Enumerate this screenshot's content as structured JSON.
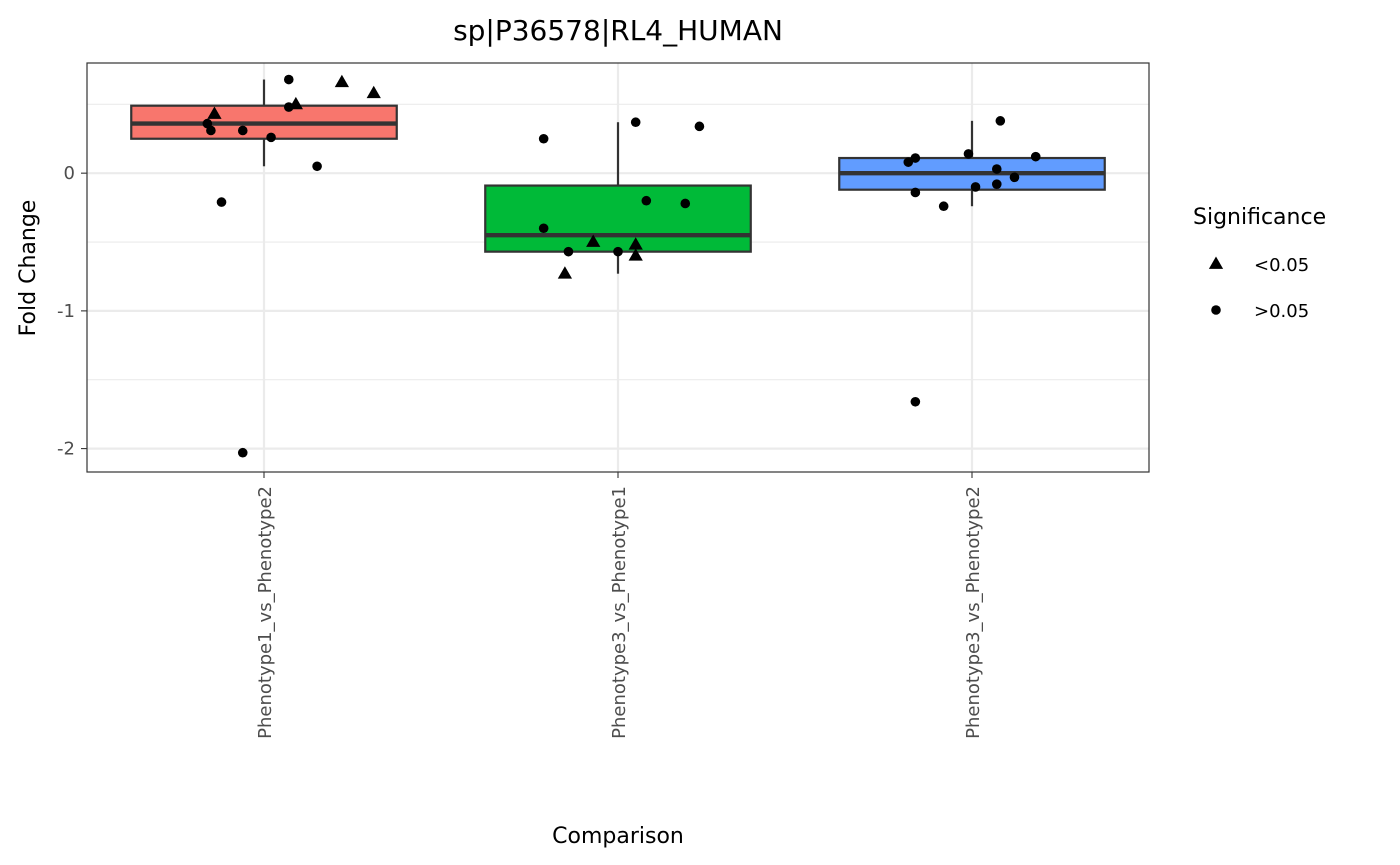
{
  "chart_data": {
    "type": "boxplot",
    "title": "sp|P36578|RL4_HUMAN",
    "xlabel": "Comparison",
    "ylabel": "Fold Change",
    "ylim": [
      -2.17,
      0.8
    ],
    "y_ticks": [
      {
        "value": 0,
        "label": "0"
      },
      {
        "value": -1,
        "label": "-1"
      },
      {
        "value": -2,
        "label": "-2"
      }
    ],
    "categories": [
      "Phenotype1_vs_Phenotype2",
      "Phenotype3_vs_Phenotype1",
      "Phenotype3_vs_Phenotype2"
    ],
    "boxes": [
      {
        "category": "Phenotype1_vs_Phenotype2",
        "fill": "#F8766D",
        "whisker_low": 0.05,
        "q1": 0.25,
        "median": 0.36,
        "q3": 0.49,
        "whisker_high": 0.68
      },
      {
        "category": "Phenotype3_vs_Phenotype1",
        "fill": "#00BA38",
        "whisker_low": -0.73,
        "q1": -0.57,
        "median": -0.45,
        "q3": -0.09,
        "whisker_high": 0.37
      },
      {
        "category": "Phenotype3_vs_Phenotype2",
        "fill": "#619CFF",
        "whisker_low": -0.24,
        "q1": -0.12,
        "median": 0.0,
        "q3": 0.11,
        "whisker_high": 0.38
      }
    ],
    "points": [
      {
        "category": "Phenotype1_vs_Phenotype2",
        "jitter": 0.07,
        "y": 0.68,
        "sig": ">0.05"
      },
      {
        "category": "Phenotype1_vs_Phenotype2",
        "jitter": 0.22,
        "y": 0.66,
        "sig": "<0.05"
      },
      {
        "category": "Phenotype1_vs_Phenotype2",
        "jitter": 0.31,
        "y": 0.58,
        "sig": "<0.05"
      },
      {
        "category": "Phenotype1_vs_Phenotype2",
        "jitter": 0.09,
        "y": 0.5,
        "sig": "<0.05"
      },
      {
        "category": "Phenotype1_vs_Phenotype2",
        "jitter": 0.07,
        "y": 0.48,
        "sig": ">0.05"
      },
      {
        "category": "Phenotype1_vs_Phenotype2",
        "jitter": -0.14,
        "y": 0.43,
        "sig": "<0.05"
      },
      {
        "category": "Phenotype1_vs_Phenotype2",
        "jitter": -0.16,
        "y": 0.36,
        "sig": ">0.05"
      },
      {
        "category": "Phenotype1_vs_Phenotype2",
        "jitter": -0.15,
        "y": 0.31,
        "sig": ">0.05"
      },
      {
        "category": "Phenotype1_vs_Phenotype2",
        "jitter": -0.06,
        "y": 0.31,
        "sig": ">0.05"
      },
      {
        "category": "Phenotype1_vs_Phenotype2",
        "jitter": 0.02,
        "y": 0.26,
        "sig": ">0.05"
      },
      {
        "category": "Phenotype1_vs_Phenotype2",
        "jitter": 0.15,
        "y": 0.05,
        "sig": ">0.05"
      },
      {
        "category": "Phenotype1_vs_Phenotype2",
        "jitter": -0.12,
        "y": -0.21,
        "sig": ">0.05"
      },
      {
        "category": "Phenotype1_vs_Phenotype2",
        "jitter": -0.06,
        "y": -2.03,
        "sig": ">0.05"
      },
      {
        "category": "Phenotype3_vs_Phenotype1",
        "jitter": 0.05,
        "y": 0.37,
        "sig": ">0.05"
      },
      {
        "category": "Phenotype3_vs_Phenotype1",
        "jitter": 0.23,
        "y": 0.34,
        "sig": ">0.05"
      },
      {
        "category": "Phenotype3_vs_Phenotype1",
        "jitter": -0.21,
        "y": 0.25,
        "sig": ">0.05"
      },
      {
        "category": "Phenotype3_vs_Phenotype1",
        "jitter": 0.08,
        "y": -0.2,
        "sig": ">0.05"
      },
      {
        "category": "Phenotype3_vs_Phenotype1",
        "jitter": 0.19,
        "y": -0.22,
        "sig": ">0.05"
      },
      {
        "category": "Phenotype3_vs_Phenotype1",
        "jitter": -0.21,
        "y": -0.4,
        "sig": ">0.05"
      },
      {
        "category": "Phenotype3_vs_Phenotype1",
        "jitter": -0.07,
        "y": -0.5,
        "sig": "<0.05"
      },
      {
        "category": "Phenotype3_vs_Phenotype1",
        "jitter": 0.05,
        "y": -0.52,
        "sig": "<0.05"
      },
      {
        "category": "Phenotype3_vs_Phenotype1",
        "jitter": -0.14,
        "y": -0.57,
        "sig": ">0.05"
      },
      {
        "category": "Phenotype3_vs_Phenotype1",
        "jitter": 0.0,
        "y": -0.57,
        "sig": ">0.05"
      },
      {
        "category": "Phenotype3_vs_Phenotype1",
        "jitter": 0.05,
        "y": -0.6,
        "sig": "<0.05"
      },
      {
        "category": "Phenotype3_vs_Phenotype1",
        "jitter": -0.15,
        "y": -0.73,
        "sig": "<0.05"
      },
      {
        "category": "Phenotype3_vs_Phenotype2",
        "jitter": 0.08,
        "y": 0.38,
        "sig": ">0.05"
      },
      {
        "category": "Phenotype3_vs_Phenotype2",
        "jitter": -0.01,
        "y": 0.14,
        "sig": ">0.05"
      },
      {
        "category": "Phenotype3_vs_Phenotype2",
        "jitter": 0.18,
        "y": 0.12,
        "sig": ">0.05"
      },
      {
        "category": "Phenotype3_vs_Phenotype2",
        "jitter": -0.16,
        "y": 0.11,
        "sig": ">0.05"
      },
      {
        "category": "Phenotype3_vs_Phenotype2",
        "jitter": -0.18,
        "y": 0.08,
        "sig": ">0.05"
      },
      {
        "category": "Phenotype3_vs_Phenotype2",
        "jitter": 0.07,
        "y": 0.03,
        "sig": ">0.05"
      },
      {
        "category": "Phenotype3_vs_Phenotype2",
        "jitter": 0.12,
        "y": -0.03,
        "sig": ">0.05"
      },
      {
        "category": "Phenotype3_vs_Phenotype2",
        "jitter": 0.07,
        "y": -0.08,
        "sig": ">0.05"
      },
      {
        "category": "Phenotype3_vs_Phenotype2",
        "jitter": 0.01,
        "y": -0.1,
        "sig": ">0.05"
      },
      {
        "category": "Phenotype3_vs_Phenotype2",
        "jitter": -0.16,
        "y": -0.14,
        "sig": ">0.05"
      },
      {
        "category": "Phenotype3_vs_Phenotype2",
        "jitter": -0.08,
        "y": -0.24,
        "sig": ">0.05"
      },
      {
        "category": "Phenotype3_vs_Phenotype2",
        "jitter": -0.16,
        "y": -1.66,
        "sig": ">0.05"
      }
    ],
    "legend": {
      "title": "Significance",
      "position": "right",
      "items": [
        {
          "label": "<0.05",
          "shape": "triangle"
        },
        {
          "label": ">0.05",
          "shape": "circle"
        }
      ]
    },
    "grid": true
  }
}
